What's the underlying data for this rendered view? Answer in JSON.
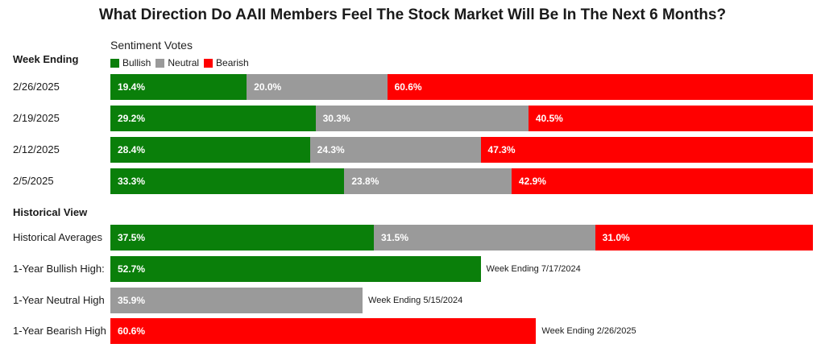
{
  "chart_data": {
    "type": "bar",
    "orientation": "horizontal",
    "stacked": true,
    "title": "What Direction Do AAII Members Feel The Stock Market Will Be In The Next 6 Months?",
    "subtitle": "Sentiment Votes",
    "colors": {
      "Bullish": "#0a7f0a",
      "Neutral": "#9a9a9a",
      "Bearish": "#ff0000"
    },
    "legend": {
      "placement": "top-left",
      "items": [
        "Bullish",
        "Neutral",
        "Bearish"
      ]
    },
    "week_section": {
      "heading": "Week Ending",
      "rows": [
        {
          "label": "2/26/2025",
          "values": [
            19.4,
            20.0,
            60.6
          ],
          "labels": [
            "19.4%",
            "20.0%",
            "60.6%"
          ]
        },
        {
          "label": "2/19/2025",
          "values": [
            29.2,
            30.3,
            40.5
          ],
          "labels": [
            "29.2%",
            "30.3%",
            "40.5%"
          ]
        },
        {
          "label": "2/12/2025",
          "values": [
            28.4,
            24.3,
            47.3
          ],
          "labels": [
            "28.4%",
            "24.3%",
            "47.3%"
          ]
        },
        {
          "label": "2/5/2025",
          "values": [
            33.3,
            23.8,
            42.9
          ],
          "labels": [
            "33.3%",
            "23.8%",
            "42.9%"
          ]
        }
      ]
    },
    "historical_section": {
      "heading": "Historical View",
      "averages": {
        "label": "Historical Averages",
        "values": [
          37.5,
          31.5,
          31.0
        ],
        "labels": [
          "37.5%",
          "31.5%",
          "31.0%"
        ]
      },
      "highs": [
        {
          "label": "1-Year Bullish High:",
          "series": "Bullish",
          "value": 52.7,
          "value_label": "52.7%",
          "note": "Week Ending 7/17/2024"
        },
        {
          "label": "1-Year Neutral High",
          "series": "Neutral",
          "value": 35.9,
          "value_label": "35.9%",
          "note": "Week Ending 5/15/2024"
        },
        {
          "label": "1-Year Bearish High",
          "series": "Bearish",
          "value": 60.6,
          "value_label": "60.6%",
          "note": "Week Ending 2/26/2025"
        }
      ]
    },
    "xlim": [
      0,
      100
    ]
  }
}
